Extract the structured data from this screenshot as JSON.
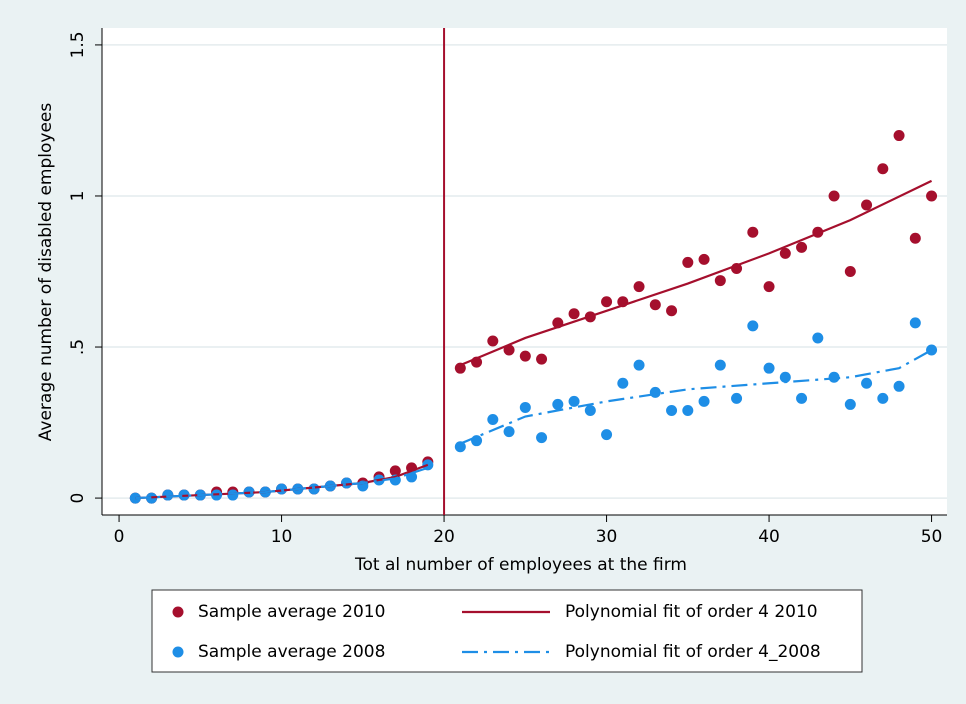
{
  "chart_data": {
    "type": "scatter",
    "x_label": "Tot al number of employees at the firm",
    "y_label": "Average number of disabled employees",
    "xlim": [
      -1.05,
      50.95
    ],
    "ylim": [
      -0.056,
      1.556
    ],
    "xticks": [
      0,
      10,
      20,
      30,
      40,
      50
    ],
    "yticks": [
      0,
      {
        "value": 0.5,
        "label": ".5"
      },
      1,
      1.5
    ],
    "grid": true,
    "vline": 20,
    "vline_color": "#a50f2d",
    "series": [
      {
        "name": "Sample average 2010",
        "color": "#a50f2d",
        "mode": "marker",
        "x": [
          1,
          2,
          3,
          4,
          5,
          6,
          7,
          8,
          9,
          10,
          11,
          12,
          13,
          14,
          15,
          16,
          17,
          18,
          19,
          21,
          22,
          23,
          24,
          25,
          26,
          27,
          28,
          29,
          30,
          31,
          32,
          33,
          34,
          35,
          36,
          37,
          38,
          39,
          40,
          41,
          42,
          43,
          44,
          45,
          46,
          47,
          48,
          49,
          50
        ],
        "values": [
          0,
          0,
          0.01,
          0.01,
          0.01,
          0.02,
          0.02,
          0.02,
          0.02,
          0.03,
          0.03,
          0.03,
          0.04,
          0.05,
          0.05,
          0.07,
          0.09,
          0.1,
          0.12,
          0.43,
          0.45,
          0.52,
          0.49,
          0.47,
          0.46,
          0.58,
          0.61,
          0.6,
          0.65,
          0.65,
          0.7,
          0.64,
          0.62,
          0.78,
          0.79,
          0.72,
          0.76,
          0.88,
          0.7,
          0.81,
          0.83,
          0.88,
          1.0,
          0.75,
          0.97,
          1.09,
          1.2,
          0.86,
          1.0
        ]
      },
      {
        "name": "Sample average 2008",
        "color": "#1e8ee6",
        "mode": "marker",
        "x": [
          1,
          2,
          3,
          4,
          5,
          6,
          7,
          8,
          9,
          10,
          11,
          12,
          13,
          14,
          15,
          16,
          17,
          18,
          19,
          21,
          22,
          23,
          24,
          25,
          26,
          27,
          28,
          29,
          30,
          31,
          32,
          33,
          34,
          35,
          36,
          37,
          38,
          39,
          40,
          41,
          42,
          43,
          44,
          45,
          46,
          47,
          48,
          49,
          50
        ],
        "values": [
          0,
          0,
          0.01,
          0.01,
          0.01,
          0.01,
          0.01,
          0.02,
          0.02,
          0.03,
          0.03,
          0.03,
          0.04,
          0.05,
          0.04,
          0.06,
          0.06,
          0.07,
          0.11,
          0.17,
          0.19,
          0.26,
          0.22,
          0.3,
          0.2,
          0.31,
          0.32,
          0.29,
          0.21,
          0.38,
          0.44,
          0.35,
          0.29,
          0.29,
          0.32,
          0.44,
          0.33,
          0.57,
          0.43,
          0.4,
          0.33,
          0.53,
          0.4,
          0.31,
          0.38,
          0.33,
          0.37,
          0.58,
          0.49
        ]
      },
      {
        "name": "Polynomial fit of order 4 2010",
        "color": "#a50f2d",
        "mode": "line",
        "dash": "solid",
        "x": [
          1,
          3,
          5,
          7,
          9,
          11,
          13,
          15,
          17,
          19,
          20,
          21,
          25,
          30,
          35,
          40,
          45,
          50
        ],
        "values": [
          0,
          0.005,
          0.01,
          0.015,
          0.02,
          0.03,
          0.04,
          0.05,
          0.07,
          0.11,
          null,
          0.44,
          0.53,
          0.62,
          0.71,
          0.81,
          0.92,
          1.05
        ]
      },
      {
        "name": "Polynomial fit of order 4_2008",
        "color": "#1e8ee6",
        "mode": "line",
        "dash": "dash-dot",
        "x": [
          1,
          3,
          5,
          7,
          9,
          11,
          13,
          15,
          17,
          19,
          20,
          21,
          25,
          30,
          35,
          40,
          45,
          48,
          50
        ],
        "values": [
          0,
          0.005,
          0.01,
          0.015,
          0.02,
          0.03,
          0.04,
          0.05,
          0.065,
          0.1,
          null,
          0.18,
          0.27,
          0.32,
          0.36,
          0.38,
          0.4,
          0.43,
          0.49
        ]
      }
    ]
  }
}
